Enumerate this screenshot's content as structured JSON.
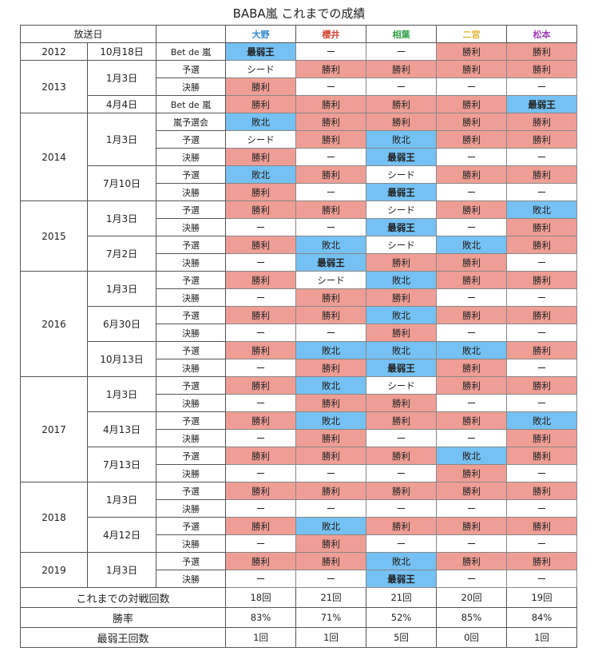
{
  "title": "BABA嵐 これまでの成績",
  "header": {
    "date": "放送日"
  },
  "members": [
    {
      "name": "大野",
      "color": "#2f8ad0"
    },
    {
      "name": "櫻井",
      "color": "#d94235"
    },
    {
      "name": "相葉",
      "color": "#37a24a"
    },
    {
      "name": "二宮",
      "color": "#e3b534"
    },
    {
      "name": "松本",
      "color": "#a23fb2"
    }
  ],
  "result_colors": {
    "win": "#ef9e95",
    "lose": "#75c1f3",
    "neutral": "#ffffff"
  },
  "rows": [
    {
      "year": "2012",
      "date": "10月18日",
      "event": "Bet de 嵐",
      "results": [
        "最弱王",
        "ー",
        "ー",
        "勝利",
        "勝利"
      ]
    },
    {
      "year": "2013",
      "date": "1月3日",
      "event": "予選",
      "results": [
        "シード",
        "勝利",
        "勝利",
        "勝利",
        "勝利"
      ]
    },
    {
      "event": "決勝",
      "results": [
        "勝利",
        "ー",
        "ー",
        "ー",
        "ー"
      ]
    },
    {
      "date": "4月4日",
      "event": "Bet de 嵐",
      "results": [
        "勝利",
        "勝利",
        "勝利",
        "勝利",
        "最弱王"
      ]
    },
    {
      "year": "2014",
      "date": "1月3日",
      "event": "嵐予選会",
      "results": [
        "敗北",
        "勝利",
        "勝利",
        "勝利",
        "勝利"
      ]
    },
    {
      "event": "予選",
      "results": [
        "シード",
        "勝利",
        "敗北",
        "勝利",
        "勝利"
      ]
    },
    {
      "event": "決勝",
      "results": [
        "勝利",
        "ー",
        "最弱王",
        "ー",
        "ー"
      ]
    },
    {
      "date": "7月10日",
      "event": "予選",
      "results": [
        "敗北",
        "勝利",
        "シード",
        "勝利",
        "勝利"
      ]
    },
    {
      "event": "決勝",
      "results": [
        "勝利",
        "ー",
        "最弱王",
        "ー",
        "ー"
      ]
    },
    {
      "year": "2015",
      "date": "1月3日",
      "event": "予選",
      "results": [
        "勝利",
        "勝利",
        "シード",
        "勝利",
        "敗北"
      ]
    },
    {
      "event": "決勝",
      "results": [
        "ー",
        "ー",
        "最弱王",
        "ー",
        "勝利"
      ]
    },
    {
      "date": "7月2日",
      "event": "予選",
      "results": [
        "勝利",
        "敗北",
        "シード",
        "敗北",
        "勝利"
      ]
    },
    {
      "event": "決勝",
      "results": [
        "ー",
        "最弱王",
        "勝利",
        "勝利",
        "ー"
      ]
    },
    {
      "year": "2016",
      "date": "1月3日",
      "event": "予選",
      "results": [
        "勝利",
        "シード",
        "敗北",
        "勝利",
        "勝利"
      ]
    },
    {
      "event": "決勝",
      "results": [
        "ー",
        "勝利",
        "勝利",
        "ー",
        "ー"
      ]
    },
    {
      "date": "6月30日",
      "event": "予選",
      "results": [
        "勝利",
        "勝利",
        "敗北",
        "勝利",
        "勝利"
      ]
    },
    {
      "event": "決勝",
      "results": [
        "ー",
        "ー",
        "勝利",
        "ー",
        "ー"
      ]
    },
    {
      "date": "10月13日",
      "event": "予選",
      "results": [
        "勝利",
        "敗北",
        "敗北",
        "敗北",
        "勝利"
      ]
    },
    {
      "event": "決勝",
      "results": [
        "ー",
        "勝利",
        "最弱王",
        "勝利",
        "ー"
      ]
    },
    {
      "year": "2017",
      "date": "1月3日",
      "event": "予選",
      "results": [
        "勝利",
        "敗北",
        "シード",
        "勝利",
        "勝利"
      ]
    },
    {
      "event": "決勝",
      "results": [
        "ー",
        "勝利",
        "勝利",
        "ー",
        "ー"
      ]
    },
    {
      "date": "4月13日",
      "event": "予選",
      "results": [
        "勝利",
        "敗北",
        "勝利",
        "勝利",
        "敗北"
      ]
    },
    {
      "event": "決勝",
      "results": [
        "ー",
        "勝利",
        "ー",
        "ー",
        "勝利"
      ]
    },
    {
      "date": "7月13日",
      "event": "予選",
      "results": [
        "勝利",
        "勝利",
        "勝利",
        "敗北",
        "勝利"
      ]
    },
    {
      "event": "決勝",
      "results": [
        "ー",
        "ー",
        "ー",
        "勝利",
        "ー"
      ]
    },
    {
      "year": "2018",
      "date": "1月3日",
      "event": "予選",
      "results": [
        "勝利",
        "勝利",
        "勝利",
        "勝利",
        "勝利"
      ]
    },
    {
      "event": "決勝",
      "results": [
        "ー",
        "ー",
        "ー",
        "ー",
        "ー"
      ]
    },
    {
      "date": "4月12日",
      "event": "予選",
      "results": [
        "勝利",
        "敗北",
        "勝利",
        "勝利",
        "勝利"
      ]
    },
    {
      "event": "決勝",
      "results": [
        "ー",
        "勝利",
        "ー",
        "ー",
        "ー"
      ]
    },
    {
      "year": "2019",
      "date": "1月3日",
      "event": "予選",
      "results": [
        "勝利",
        "勝利",
        "敗北",
        "勝利",
        "勝利"
      ]
    },
    {
      "event": "決勝",
      "results": [
        "ー",
        "ー",
        "最弱王",
        "ー",
        "ー"
      ]
    }
  ],
  "summary": [
    {
      "label": "これまでの対戦回数",
      "values": [
        "18回",
        "21回",
        "21回",
        "20回",
        "19回"
      ]
    },
    {
      "label": "勝率",
      "values": [
        "83%",
        "71%",
        "52%",
        "85%",
        "84%"
      ]
    },
    {
      "label": "最弱王回数",
      "values": [
        "1回",
        "1回",
        "5回",
        "0回",
        "1回"
      ]
    }
  ]
}
